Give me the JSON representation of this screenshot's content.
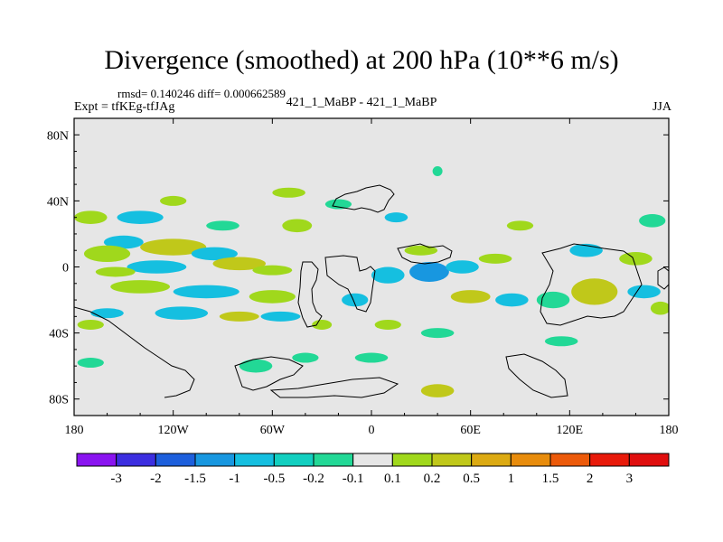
{
  "title": "Divergence (smoothed) at 200 hPa (10**6 m/s)",
  "stats_line": "rmsd= 0.140246  diff= 0.000662589",
  "expt_line": "Expt = tfKEg-tfJAg",
  "cases_line": "421_1_MaBP - 421_1_MaBP",
  "season": "JJA",
  "chart_data": {
    "type": "heatmap",
    "title": "Divergence (smoothed) at 200 hPa (10**6 m/s)",
    "x_range": [
      -180,
      180
    ],
    "y_range": [
      -90,
      90
    ],
    "x_ticks": [
      {
        "value": -180,
        "label": "180"
      },
      {
        "value": -120,
        "label": "120W"
      },
      {
        "value": -60,
        "label": "60W"
      },
      {
        "value": 0,
        "label": "0"
      },
      {
        "value": 60,
        "label": "60E"
      },
      {
        "value": 120,
        "label": "120E"
      },
      {
        "value": 180,
        "label": "180"
      }
    ],
    "y_ticks": [
      {
        "value": 80,
        "label": "80N"
      },
      {
        "value": 40,
        "label": "40N"
      },
      {
        "value": 0,
        "label": "0"
      },
      {
        "value": -40,
        "label": "40S"
      },
      {
        "value": -80,
        "label": "80S"
      }
    ],
    "background_color": "#e6e6e6",
    "colorbar": {
      "labels": [
        "-3",
        "-2",
        "-1.5",
        "-1",
        "-0.5",
        "-0.2",
        "-0.1",
        "0.1",
        "0.2",
        "0.5",
        "1",
        "1.5",
        "2",
        "3"
      ],
      "colors": [
        "#8a14f0",
        "#3c2ee0",
        "#1d5fdc",
        "#1897e0",
        "#15bfe0",
        "#12cfc0",
        "#22d896",
        "#e6e6e6",
        "#a0d81c",
        "#c0c81a",
        "#dcaa12",
        "#e88c0c",
        "#ec5a0a",
        "#e81a0a",
        "#e00e0e"
      ]
    },
    "features": [
      {
        "lon": -140,
        "lat": 30,
        "rx": 14,
        "ry": 4,
        "color": "#15bfe0"
      },
      {
        "lon": -170,
        "lat": 30,
        "rx": 10,
        "ry": 4,
        "color": "#a0d81c"
      },
      {
        "lon": -150,
        "lat": 15,
        "rx": 12,
        "ry": 4,
        "color": "#15bfe0"
      },
      {
        "lon": -160,
        "lat": 8,
        "rx": 14,
        "ry": 5,
        "color": "#a0d81c"
      },
      {
        "lon": -120,
        "lat": 12,
        "rx": 20,
        "ry": 5,
        "color": "#c0c81a"
      },
      {
        "lon": -95,
        "lat": 8,
        "rx": 14,
        "ry": 4,
        "color": "#15bfe0"
      },
      {
        "lon": -130,
        "lat": 0,
        "rx": 18,
        "ry": 4,
        "color": "#15bfe0"
      },
      {
        "lon": -155,
        "lat": -3,
        "rx": 12,
        "ry": 3,
        "color": "#a0d81c"
      },
      {
        "lon": -80,
        "lat": 2,
        "rx": 16,
        "ry": 4,
        "color": "#c0c81a"
      },
      {
        "lon": -60,
        "lat": -2,
        "rx": 12,
        "ry": 3,
        "color": "#a0d81c"
      },
      {
        "lon": -140,
        "lat": -12,
        "rx": 18,
        "ry": 4,
        "color": "#a0d81c"
      },
      {
        "lon": -100,
        "lat": -15,
        "rx": 20,
        "ry": 4,
        "color": "#15bfe0"
      },
      {
        "lon": -60,
        "lat": -18,
        "rx": 14,
        "ry": 4,
        "color": "#a0d81c"
      },
      {
        "lon": -160,
        "lat": -28,
        "rx": 10,
        "ry": 3,
        "color": "#15bfe0"
      },
      {
        "lon": -115,
        "lat": -28,
        "rx": 16,
        "ry": 4,
        "color": "#15bfe0"
      },
      {
        "lon": -80,
        "lat": -30,
        "rx": 12,
        "ry": 3,
        "color": "#c0c81a"
      },
      {
        "lon": -55,
        "lat": -30,
        "rx": 12,
        "ry": 3,
        "color": "#15bfe0"
      },
      {
        "lon": -170,
        "lat": -35,
        "rx": 8,
        "ry": 3,
        "color": "#a0d81c"
      },
      {
        "lon": -90,
        "lat": 25,
        "rx": 10,
        "ry": 3,
        "color": "#22d896"
      },
      {
        "lon": -45,
        "lat": 25,
        "rx": 9,
        "ry": 4,
        "color": "#a0d81c"
      },
      {
        "lon": -120,
        "lat": 40,
        "rx": 8,
        "ry": 3,
        "color": "#a0d81c"
      },
      {
        "lon": -50,
        "lat": 45,
        "rx": 10,
        "ry": 3,
        "color": "#a0d81c"
      },
      {
        "lon": -20,
        "lat": 38,
        "rx": 8,
        "ry": 3,
        "color": "#22d896"
      },
      {
        "lon": 15,
        "lat": 30,
        "rx": 7,
        "ry": 3,
        "color": "#15bfe0"
      },
      {
        "lon": 40,
        "lat": 58,
        "rx": 3,
        "ry": 3,
        "color": "#22d896"
      },
      {
        "lon": 30,
        "lat": 10,
        "rx": 10,
        "ry": 3,
        "color": "#a0d81c"
      },
      {
        "lon": 10,
        "lat": -5,
        "rx": 10,
        "ry": 5,
        "color": "#15bfe0"
      },
      {
        "lon": 35,
        "lat": -3,
        "rx": 12,
        "ry": 6,
        "color": "#1897e0"
      },
      {
        "lon": 55,
        "lat": 0,
        "rx": 10,
        "ry": 4,
        "color": "#15bfe0"
      },
      {
        "lon": 75,
        "lat": 5,
        "rx": 10,
        "ry": 3,
        "color": "#a0d81c"
      },
      {
        "lon": 60,
        "lat": -18,
        "rx": 12,
        "ry": 4,
        "color": "#c0c81a"
      },
      {
        "lon": 85,
        "lat": -20,
        "rx": 10,
        "ry": 4,
        "color": "#15bfe0"
      },
      {
        "lon": -10,
        "lat": -20,
        "rx": 8,
        "ry": 4,
        "color": "#15bfe0"
      },
      {
        "lon": -30,
        "lat": -35,
        "rx": 6,
        "ry": 3,
        "color": "#a0d81c"
      },
      {
        "lon": 10,
        "lat": -35,
        "rx": 8,
        "ry": 3,
        "color": "#a0d81c"
      },
      {
        "lon": 40,
        "lat": -40,
        "rx": 10,
        "ry": 3,
        "color": "#22d896"
      },
      {
        "lon": 90,
        "lat": 25,
        "rx": 8,
        "ry": 3,
        "color": "#a0d81c"
      },
      {
        "lon": 130,
        "lat": 10,
        "rx": 10,
        "ry": 4,
        "color": "#15bfe0"
      },
      {
        "lon": 135,
        "lat": -15,
        "rx": 14,
        "ry": 8,
        "color": "#c0c81a"
      },
      {
        "lon": 110,
        "lat": -20,
        "rx": 10,
        "ry": 5,
        "color": "#22d896"
      },
      {
        "lon": 160,
        "lat": 5,
        "rx": 10,
        "ry": 4,
        "color": "#a0d81c"
      },
      {
        "lon": 165,
        "lat": -15,
        "rx": 10,
        "ry": 4,
        "color": "#15bfe0"
      },
      {
        "lon": 170,
        "lat": 28,
        "rx": 8,
        "ry": 4,
        "color": "#22d896"
      },
      {
        "lon": 175,
        "lat": -25,
        "rx": 6,
        "ry": 4,
        "color": "#a0d81c"
      },
      {
        "lon": 115,
        "lat": -45,
        "rx": 10,
        "ry": 3,
        "color": "#22d896"
      },
      {
        "lon": -70,
        "lat": -60,
        "rx": 10,
        "ry": 4,
        "color": "#22d896"
      },
      {
        "lon": -40,
        "lat": -55,
        "rx": 8,
        "ry": 3,
        "color": "#22d896"
      },
      {
        "lon": 0,
        "lat": -55,
        "rx": 10,
        "ry": 3,
        "color": "#22d896"
      },
      {
        "lon": 40,
        "lat": -75,
        "rx": 10,
        "ry": 4,
        "color": "#c0c81a"
      },
      {
        "lon": -170,
        "lat": -58,
        "rx": 8,
        "ry": 3,
        "color": "#22d896"
      }
    ]
  }
}
